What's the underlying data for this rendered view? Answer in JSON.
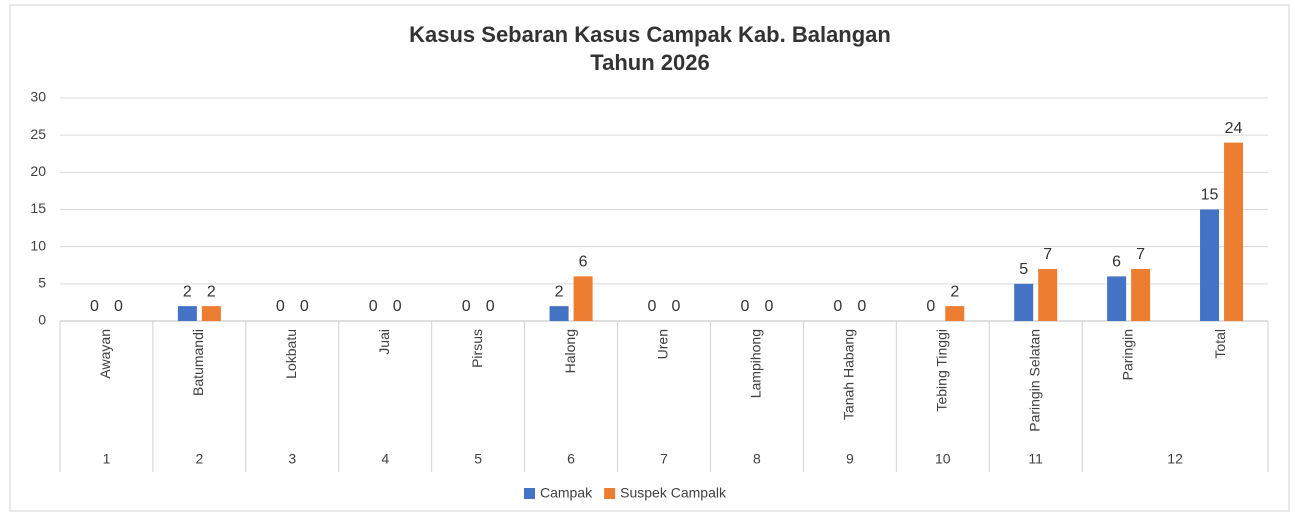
{
  "chart_data": {
    "type": "bar",
    "title": [
      "Kasus Sebaran Kasus Campak Kab. Balangan",
      "Tahun 2026"
    ],
    "categories": [
      "Awayan",
      "Batumandi",
      "Lokbatu",
      "Juai",
      "Pirsus",
      "Halong",
      "Uren",
      "Lampihong",
      "Tanah Habang",
      "Tebing Tinggi",
      "Paringin Selatan",
      "Paringin",
      "Total"
    ],
    "category_groups": [
      {
        "label": "1",
        "span": 1
      },
      {
        "label": "2",
        "span": 1
      },
      {
        "label": "3",
        "span": 1
      },
      {
        "label": "4",
        "span": 1
      },
      {
        "label": "5",
        "span": 1
      },
      {
        "label": "6",
        "span": 1
      },
      {
        "label": "7",
        "span": 1
      },
      {
        "label": "8",
        "span": 1
      },
      {
        "label": "9",
        "span": 1
      },
      {
        "label": "10",
        "span": 1
      },
      {
        "label": "11",
        "span": 1
      },
      {
        "label": "12",
        "span": 2
      }
    ],
    "series": [
      {
        "name": "Campak",
        "color": "#4472c4",
        "values": [
          0,
          2,
          0,
          0,
          0,
          2,
          0,
          0,
          0,
          0,
          5,
          6,
          15
        ]
      },
      {
        "name": "Suspek Campalk",
        "color": "#ed7d31",
        "values": [
          0,
          2,
          0,
          0,
          0,
          6,
          0,
          0,
          0,
          2,
          7,
          7,
          24
        ]
      }
    ],
    "ylim": [
      0,
      30
    ],
    "yticks": [
      0,
      5,
      10,
      15,
      20,
      25,
      30
    ],
    "grid": true,
    "legend": "bottom"
  }
}
